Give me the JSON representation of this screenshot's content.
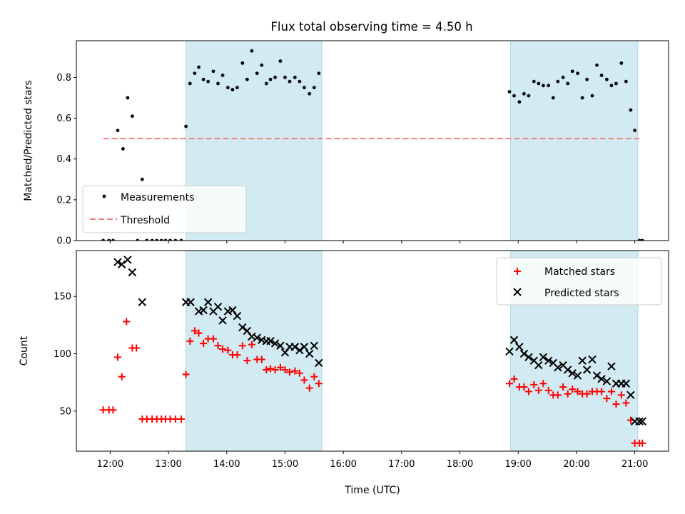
{
  "title": "Flux total observing time = 4.50 h",
  "colors": {
    "shade": "#add8e6",
    "measure": "#000000",
    "threshold": "#f08080",
    "matched": "#ff0000",
    "predicted": "#000000"
  },
  "chart_data": [
    {
      "type": "scatter",
      "title": "Flux total observing time = 4.50 h",
      "xlabel": "",
      "ylabel": "Matched/Predicted stars",
      "xlim": [
        11.42,
        21.58
      ],
      "ylim": [
        0.0,
        0.98
      ],
      "yticks": [
        0.0,
        0.2,
        0.4,
        0.6,
        0.8
      ],
      "ytick_labels": [
        "0.0",
        "0.2",
        "0.4",
        "0.6",
        "0.8"
      ],
      "shaded_ranges": [
        [
          13.3,
          15.63
        ],
        [
          18.87,
          21.05
        ]
      ],
      "legend": {
        "position": "lower-left",
        "entries": [
          "Measurements",
          "Threshold"
        ]
      },
      "threshold": {
        "name": "Threshold",
        "x": [
          11.88,
          21.08
        ],
        "value": 0.5
      },
      "series": [
        {
          "name": "Measurements",
          "x": [
            11.88,
            11.98,
            12.05,
            12.13,
            12.22,
            12.3,
            12.38,
            12.47,
            12.55,
            12.63,
            12.72,
            12.8,
            12.88,
            12.95,
            13.03,
            13.12,
            13.22,
            13.3,
            13.37,
            13.45,
            13.52,
            13.6,
            13.68,
            13.77,
            13.85,
            13.93,
            14.02,
            14.1,
            14.18,
            14.27,
            14.35,
            14.43,
            14.52,
            14.6,
            14.68,
            14.75,
            14.83,
            14.92,
            15.0,
            15.08,
            15.17,
            15.25,
            15.33,
            15.42,
            15.5,
            15.58,
            18.85,
            18.93,
            19.02,
            19.1,
            19.18,
            19.27,
            19.35,
            19.43,
            19.52,
            19.6,
            19.68,
            19.77,
            19.85,
            19.93,
            20.02,
            20.1,
            20.18,
            20.27,
            20.35,
            20.43,
            20.52,
            20.6,
            20.68,
            20.77,
            20.85,
            20.93,
            21.0,
            21.08,
            21.13
          ],
          "y": [
            0.0,
            0.0,
            0.0,
            0.54,
            0.45,
            0.7,
            0.61,
            0.0,
            0.3,
            0.0,
            0.0,
            0.0,
            0.0,
            0.0,
            0.0,
            0.0,
            0.0,
            0.56,
            0.77,
            0.82,
            0.85,
            0.79,
            0.78,
            0.83,
            0.77,
            0.81,
            0.75,
            0.74,
            0.75,
            0.87,
            0.79,
            0.93,
            0.82,
            0.86,
            0.77,
            0.79,
            0.8,
            0.88,
            0.8,
            0.78,
            0.8,
            0.78,
            0.75,
            0.72,
            0.75,
            0.82,
            0.73,
            0.71,
            0.68,
            0.72,
            0.71,
            0.78,
            0.77,
            0.76,
            0.76,
            0.7,
            0.78,
            0.8,
            0.77,
            0.83,
            0.82,
            0.7,
            0.79,
            0.71,
            0.86,
            0.81,
            0.79,
            0.76,
            0.77,
            0.87,
            0.78,
            0.64,
            0.54,
            0.0,
            0.0
          ]
        }
      ]
    },
    {
      "type": "scatter",
      "title": "",
      "xlabel": "Time (UTC)",
      "ylabel": "Count",
      "xlim": [
        11.42,
        21.58
      ],
      "ylim": [
        15,
        190
      ],
      "yticks": [
        50,
        100,
        150
      ],
      "ytick_labels": [
        "50",
        "100",
        "150"
      ],
      "xticks": [
        12,
        13,
        14,
        15,
        16,
        17,
        18,
        19,
        20,
        21
      ],
      "xtick_labels": [
        "12:00",
        "13:00",
        "14:00",
        "15:00",
        "16:00",
        "17:00",
        "18:00",
        "19:00",
        "20:00",
        "21:00"
      ],
      "shaded_ranges": [
        [
          13.3,
          15.63
        ],
        [
          18.87,
          21.05
        ]
      ],
      "legend": {
        "position": "top-right",
        "entries": [
          "Matched stars",
          "Predicted stars"
        ]
      },
      "series": [
        {
          "name": "Matched stars",
          "marker": "plus",
          "x": [
            11.88,
            11.98,
            12.05,
            12.13,
            12.2,
            12.28,
            12.38,
            12.45,
            12.55,
            12.63,
            12.72,
            12.8,
            12.88,
            12.95,
            13.03,
            13.12,
            13.22,
            13.3,
            13.37,
            13.45,
            13.52,
            13.6,
            13.68,
            13.77,
            13.85,
            13.93,
            14.02,
            14.1,
            14.18,
            14.27,
            14.35,
            14.43,
            14.52,
            14.6,
            14.68,
            14.75,
            14.83,
            14.92,
            15.0,
            15.08,
            15.17,
            15.25,
            15.33,
            15.42,
            15.5,
            15.58,
            18.85,
            18.93,
            19.02,
            19.1,
            19.18,
            19.27,
            19.35,
            19.43,
            19.52,
            19.6,
            19.68,
            19.77,
            19.85,
            19.93,
            20.02,
            20.1,
            20.18,
            20.27,
            20.35,
            20.43,
            20.52,
            20.6,
            20.68,
            20.77,
            20.85,
            20.93,
            21.0,
            21.08,
            21.13
          ],
          "y": [
            51,
            51,
            51,
            97,
            80,
            128,
            105,
            105,
            43,
            43,
            43,
            43,
            43,
            43,
            43,
            43,
            43,
            82,
            111,
            120,
            118,
            109,
            113,
            113,
            107,
            104,
            103,
            99,
            99,
            107,
            94,
            108,
            95,
            95,
            86,
            87,
            86,
            88,
            86,
            84,
            85,
            83,
            77,
            70,
            80,
            74,
            74,
            78,
            71,
            71,
            67,
            73,
            68,
            74,
            68,
            64,
            64,
            71,
            65,
            69,
            67,
            65,
            65,
            67,
            67,
            67,
            61,
            67,
            56,
            64,
            57,
            42,
            22,
            22,
            22
          ]
        },
        {
          "name": "Predicted stars",
          "marker": "x",
          "x": [
            12.13,
            12.2,
            12.3,
            12.38,
            12.55,
            13.3,
            13.38,
            13.52,
            13.6,
            13.68,
            13.77,
            13.85,
            13.93,
            14.02,
            14.1,
            14.18,
            14.27,
            14.35,
            14.43,
            14.52,
            14.6,
            14.68,
            14.75,
            14.83,
            14.92,
            15.0,
            15.08,
            15.17,
            15.25,
            15.33,
            15.42,
            15.5,
            15.58,
            18.85,
            18.93,
            19.02,
            19.1,
            19.18,
            19.27,
            19.35,
            19.43,
            19.52,
            19.6,
            19.68,
            19.77,
            19.85,
            19.93,
            20.02,
            20.1,
            20.18,
            20.27,
            20.35,
            20.43,
            20.52,
            20.6,
            20.68,
            20.77,
            20.85,
            20.93,
            21.0,
            21.08,
            21.13
          ],
          "y": [
            180,
            178,
            182,
            171,
            145,
            145,
            145,
            137,
            138,
            145,
            137,
            141,
            129,
            137,
            138,
            133,
            123,
            120,
            115,
            114,
            112,
            111,
            111,
            109,
            107,
            101,
            106,
            106,
            103,
            106,
            100,
            107,
            92,
            102,
            112,
            106,
            100,
            97,
            94,
            90,
            97,
            94,
            92,
            88,
            90,
            86,
            83,
            81,
            94,
            86,
            95,
            81,
            78,
            76,
            89,
            74,
            74,
            74,
            64,
            41,
            41,
            41
          ]
        }
      ]
    }
  ]
}
